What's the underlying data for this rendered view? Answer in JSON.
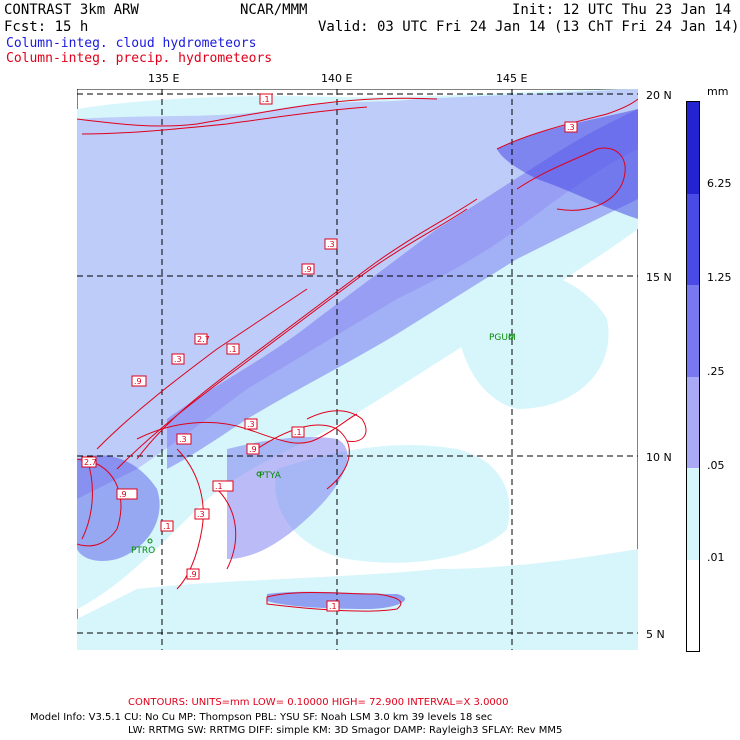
{
  "header": {
    "model": "CONTRAST  3km ARW",
    "center": "NCAR/MMM",
    "init": "Init: 12 UTC Thu 23 Jan 14",
    "forecast": "Fcst:   15 h",
    "valid": "Valid: 03 UTC Fri 24 Jan 14 (13 ChT Fri 24 Jan 14)",
    "field_cloud": "Column-integ. cloud hydrometeors",
    "field_precip": "Column-integ. precip. hydrometeors"
  },
  "map": {
    "lon_labels": [
      "135 E",
      "140 E",
      "145 E"
    ],
    "lat_labels": [
      "20 N",
      "15 N",
      "10 N",
      "5 N"
    ],
    "stations": [
      {
        "id": "PGUM"
      },
      {
        "id": "PTYA"
      },
      {
        "id": "PTRO"
      }
    ],
    "contour_labels": [
      ".1",
      ".3",
      ".9",
      "2.7",
      ".3",
      ".1",
      ".9",
      ".3",
      ".1",
      ".9",
      ".3",
      ".1",
      ".9",
      "2.7",
      ".3",
      ".1",
      ".9",
      ".1",
      ".3",
      ".9",
      ".1",
      ".3",
      ".9"
    ]
  },
  "colorbar": {
    "unit": "mm",
    "labels": [
      "6.25",
      "1.25",
      ".25",
      ".05",
      ".01"
    ],
    "colors": [
      "#2323d2",
      "#4a4ae6",
      "#7878f0",
      "#a9a9f5",
      "#d6f6fb",
      "#ffffff"
    ]
  },
  "colors": {
    "cloud_light": "#d6f6fb",
    "cloud_mid": "#a9a9f5",
    "cloud_deep": "#4a4ae6",
    "contour": "#e0001a",
    "station": "#0a8a0a"
  },
  "footer": {
    "contours": "CONTOURS:  UNITS=mm  LOW= 0.10000       HIGH=  72.900       INTERVAL=X  3.0000",
    "line1": "Model Info: V3.5.1    CU: No Cu     MP: Thompson     PBL: YSU       SF: Noah LSM      3.0 km   39 levels    18 sec",
    "line2": "LW: RRTMG    SW: RRTMG   DIFF: simple KM: 3D Smagor DAMP: Rayleigh3   SFLAY: Rev MM5"
  }
}
